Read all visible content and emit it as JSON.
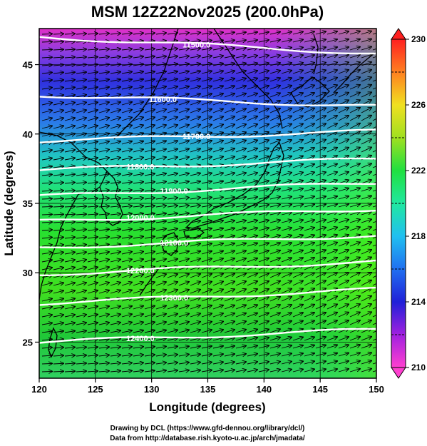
{
  "title": "MSM 12Z22Nov2025 (200.0hPa)",
  "xlabel": "Longitude (degrees)",
  "ylabel": "Latitude  (degrees)",
  "credits": [
    "Drawing by DCL (https://www.gfd-dennou.org/library/dcl/)",
    "Data from http://database.rish.kyoto-u.ac.jp/arch/jmadata/"
  ],
  "chart_data": {
    "type": "heatmap",
    "title": "MSM 12Z22Nov2025 (200.0hPa)",
    "xlabel": "Longitude (degrees)",
    "ylabel": "Latitude  (degrees)",
    "xlim": [
      120,
      150
    ],
    "ylim": [
      22.4,
      47.6
    ],
    "x_ticks": [
      120,
      125,
      130,
      135,
      140,
      145,
      150
    ],
    "y_ticks": [
      25,
      30,
      35,
      40,
      45
    ],
    "colorbar": {
      "range": [
        210,
        230
      ],
      "ticks": [
        210,
        214,
        218,
        222,
        226,
        230
      ],
      "dashed_ticks": [
        212,
        216,
        220,
        224,
        228
      ]
    },
    "contours": [
      {
        "label": "11500.0",
        "lat_west": 47.0,
        "lat_east": 45.8
      },
      {
        "label": "11600.0",
        "lat_west": 42.8,
        "lat_east": 42.0
      },
      {
        "label": "11700.0",
        "lat_west": 39.5,
        "lat_east": 40.2
      },
      {
        "label": "11800.0",
        "lat_west": 37.4,
        "lat_east": 38.2
      },
      {
        "label": "11900.0",
        "lat_west": 35.5,
        "lat_east": 36.5
      },
      {
        "label": "12000.0",
        "lat_west": 33.7,
        "lat_east": 34.6
      },
      {
        "label": "12100.0",
        "lat_west": 31.8,
        "lat_east": 32.7
      },
      {
        "label": "12200.0",
        "lat_west": 29.9,
        "lat_east": 30.8
      },
      {
        "label": "12300.0",
        "lat_west": 27.8,
        "lat_east": 28.8
      },
      {
        "label": "12400.0",
        "lat_west": 25.0,
        "lat_east": 25.9
      }
    ],
    "vector_field": "westerly wind arrows",
    "grid": true
  }
}
